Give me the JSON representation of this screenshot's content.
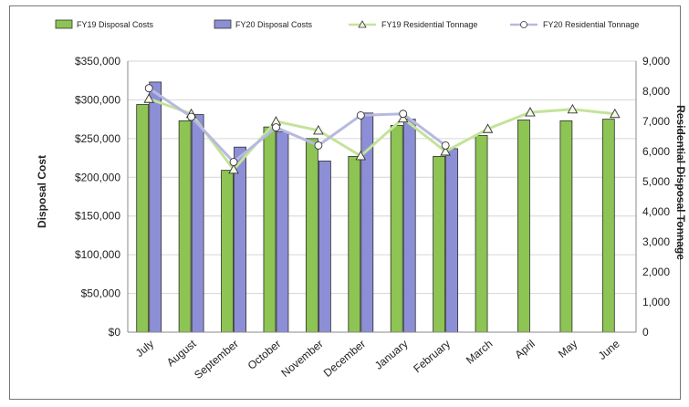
{
  "chart_data": {
    "type": "bar",
    "categories": [
      "July",
      "August",
      "September",
      "October",
      "November",
      "December",
      "January",
      "February",
      "March",
      "April",
      "May",
      "June"
    ],
    "series": [
      {
        "name": "FY19 Disposal Costs",
        "kind": "bar",
        "axis": "left",
        "color": "#8dc454",
        "values": [
          294000,
          273000,
          209000,
          265000,
          250000,
          227000,
          267000,
          227000,
          254000,
          274000,
          273000,
          275000
        ]
      },
      {
        "name": "FY20 Disposal Costs",
        "kind": "bar",
        "axis": "left",
        "color": "#8d8fd6",
        "values": [
          323000,
          281000,
          239000,
          259000,
          221000,
          283000,
          275000,
          237000,
          null,
          null,
          null,
          null
        ]
      },
      {
        "name": "FY19 Residential Tonnage",
        "kind": "line",
        "axis": "right",
        "color": "#c4e39a",
        "marker": "triangle",
        "values": [
          7750,
          7250,
          5400,
          7000,
          6700,
          5850,
          7100,
          6000,
          6750,
          7300,
          7400,
          7250
        ]
      },
      {
        "name": "FY20 Residential Tonnage",
        "kind": "line",
        "axis": "right",
        "color": "#b8b9e0",
        "marker": "circle",
        "values": [
          8100,
          7150,
          5650,
          6800,
          6200,
          7200,
          7250,
          6200,
          null,
          null,
          null,
          null
        ]
      }
    ],
    "ylabel": "Disposal Cost",
    "y2label": "Residential Disposal Tonnage",
    "ylim": [
      0,
      350000
    ],
    "y2lim": [
      0,
      9000
    ],
    "yticks": [
      "$0",
      "$50,000",
      "$100,000",
      "$150,000",
      "$200,000",
      "$250,000",
      "$300,000",
      "$350,000"
    ],
    "y2ticks": [
      "0",
      "1,000",
      "2,000",
      "3,000",
      "4,000",
      "5,000",
      "6,000",
      "7,000",
      "8,000",
      "9,000"
    ],
    "grid": true,
    "legend": "top"
  }
}
